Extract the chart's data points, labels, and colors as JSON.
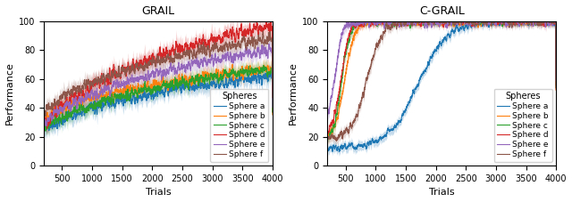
{
  "title_left": "GRAIL",
  "title_right": "C-GRAIL",
  "xlabel": "Trials",
  "ylabel": "Performance",
  "xlim_left": [
    200,
    4000
  ],
  "xlim_right": [
    200,
    4000
  ],
  "ylim_left": [
    0,
    100
  ],
  "ylim_right": [
    0,
    100
  ],
  "xticks": [
    500,
    1000,
    1500,
    2000,
    2500,
    3000,
    3500,
    4000
  ],
  "yticks": [
    0,
    20,
    40,
    60,
    80,
    100
  ],
  "sphere_labels": [
    "Sphere a",
    "Sphere b",
    "Sphere c",
    "Sphere d",
    "Sphere e",
    "Sphere f"
  ],
  "sphere_colors": [
    "#1f77b4",
    "#ff7f0e",
    "#2ca02c",
    "#d62728",
    "#9467bd",
    "#8c564b"
  ],
  "legend_title": "Spheres",
  "figsize": [
    6.4,
    2.27
  ],
  "dpi": 100
}
